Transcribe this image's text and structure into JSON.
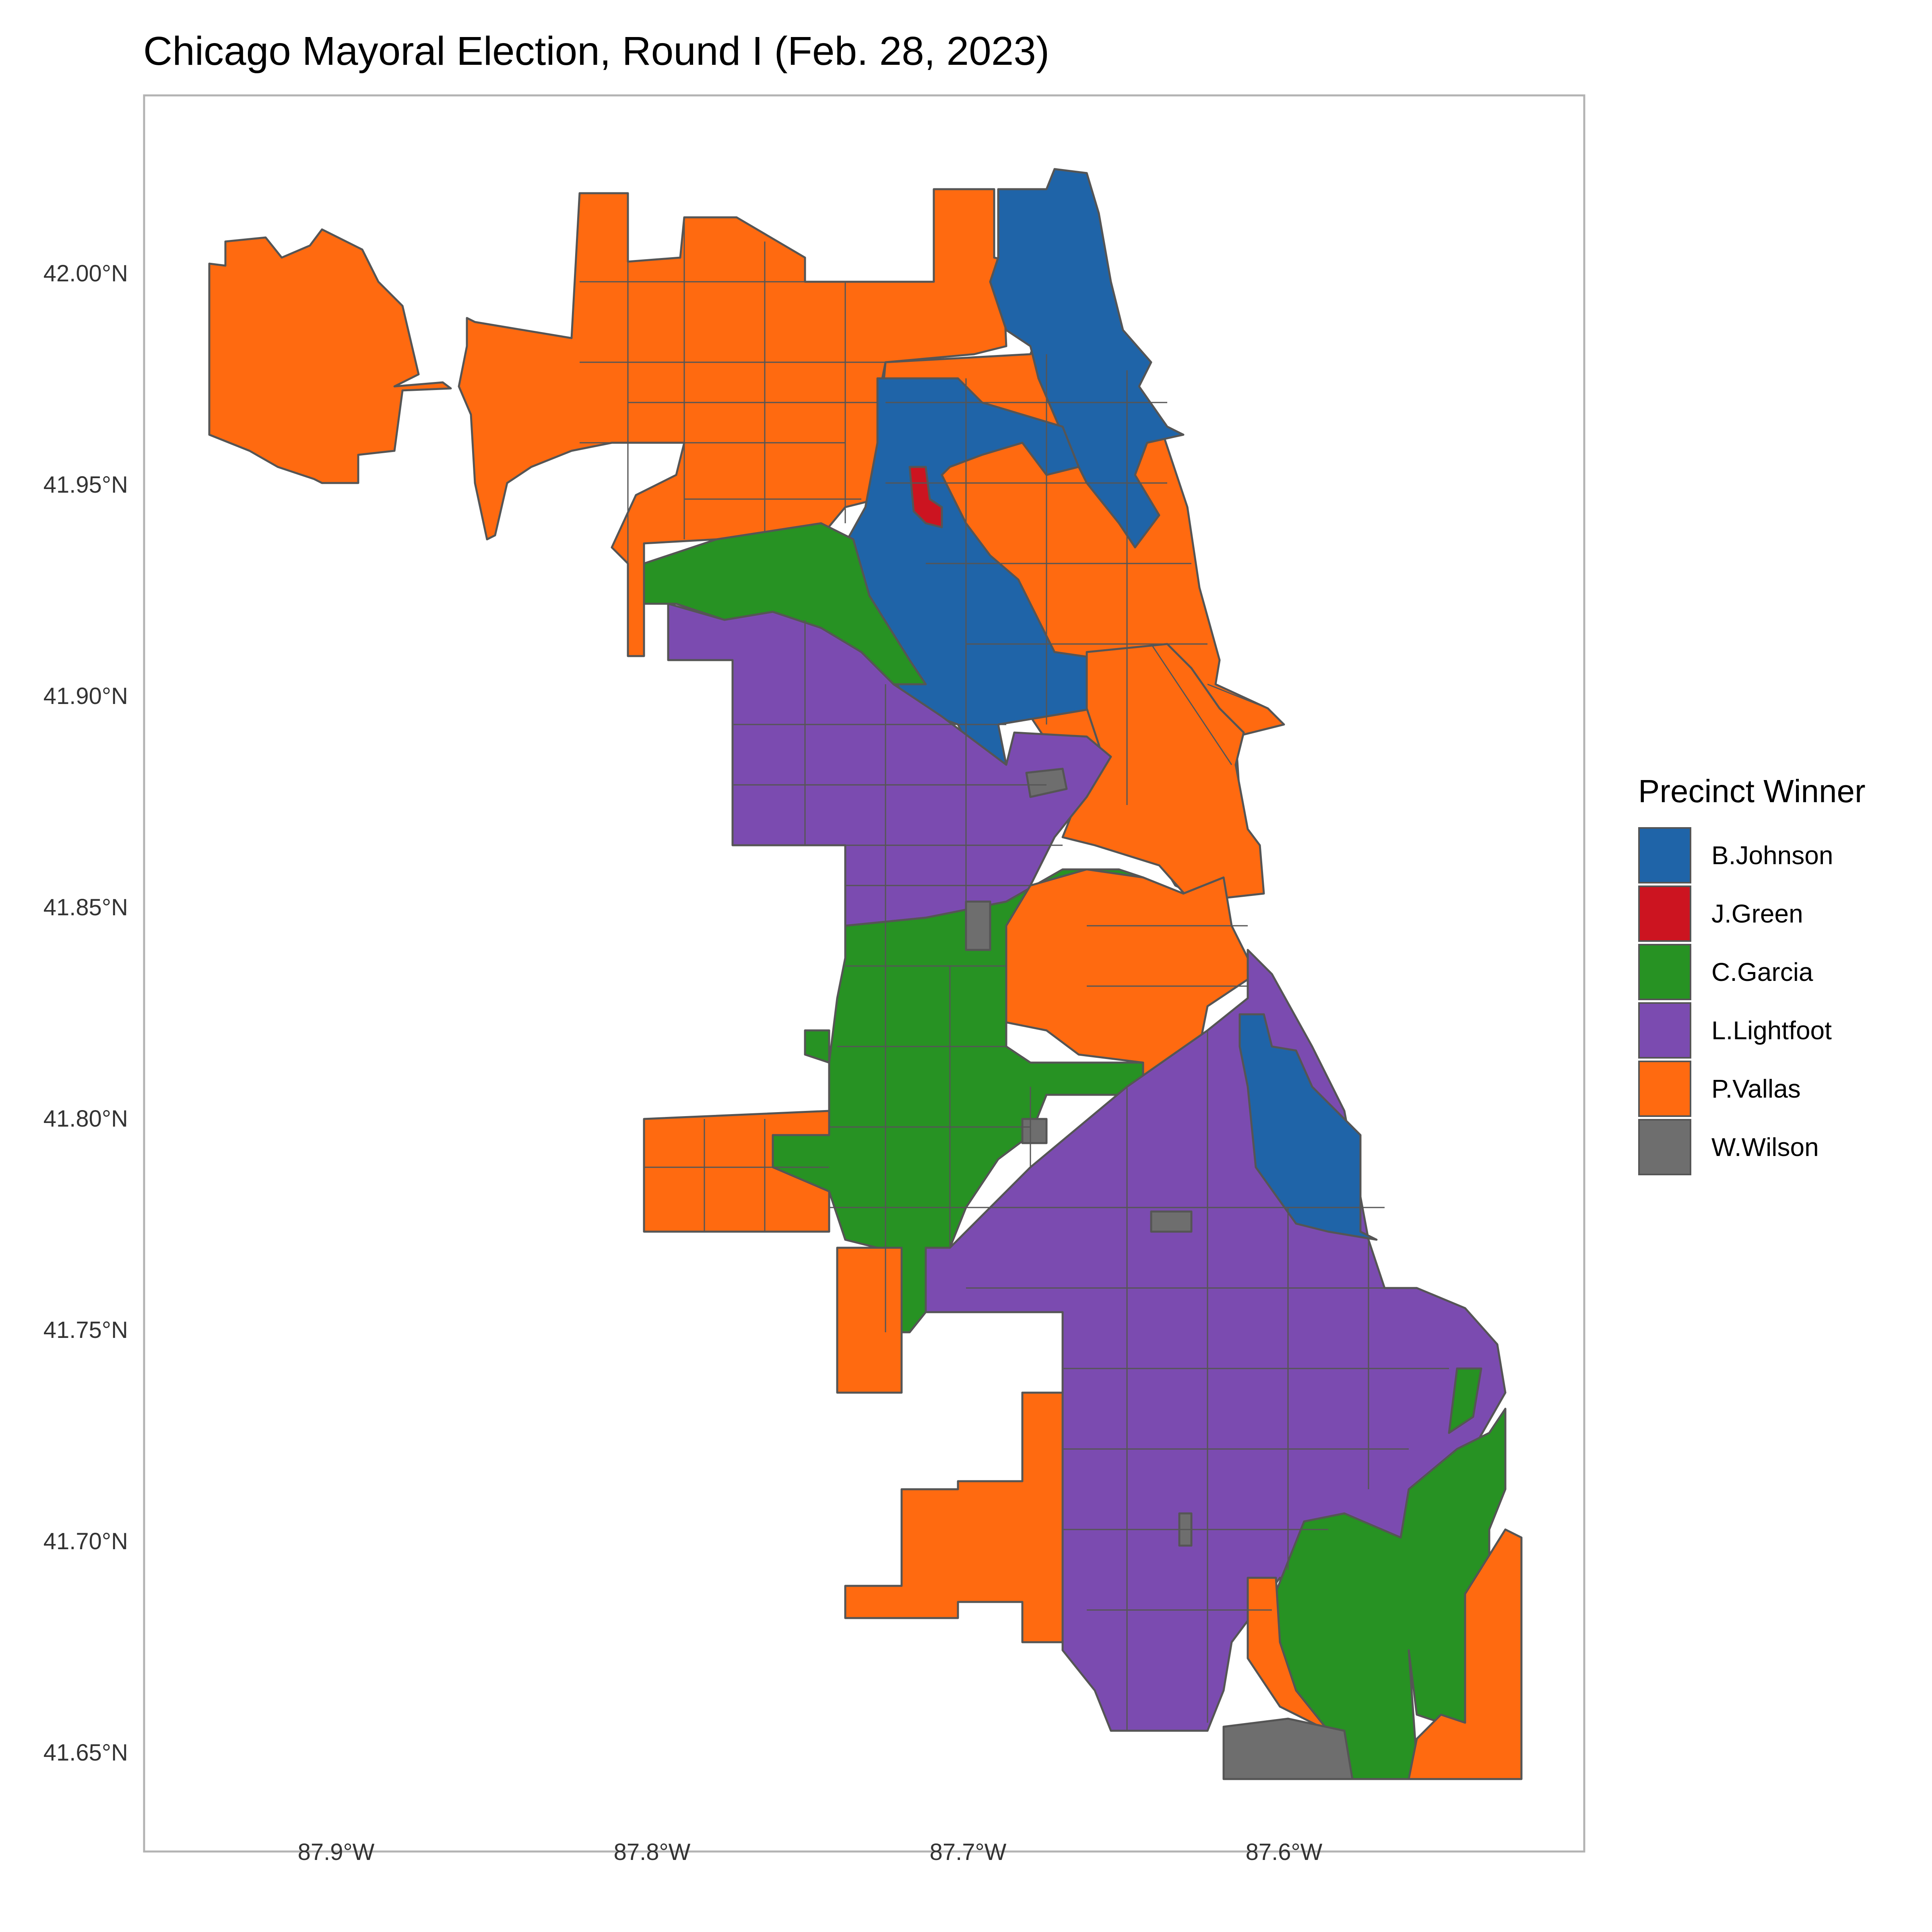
{
  "title": "Chicago Mayoral Election, Round I (Feb. 28, 2023)",
  "axes": {
    "x_ticks": [
      "87.9°W",
      "87.8°W",
      "87.7°W",
      "87.6°W"
    ],
    "y_ticks": [
      "42.00°N",
      "41.95°N",
      "41.90°N",
      "41.85°N",
      "41.80°N",
      "41.75°N",
      "41.70°N",
      "41.65°N"
    ]
  },
  "legend": {
    "title": "Precinct Winner",
    "items": [
      {
        "label": "B.Johnson",
        "color": "#1f64a8"
      },
      {
        "label": "J.Green",
        "color": "#cc1420"
      },
      {
        "label": "C.Garcia",
        "color": "#279223"
      },
      {
        "label": "L.Lightfoot",
        "color": "#7b4bb0"
      },
      {
        "label": "P.Vallas",
        "color": "#ff6a10"
      },
      {
        "label": "W.Wilson",
        "color": "#6e6e6e"
      }
    ]
  },
  "map": {
    "boundary_color": "#555555",
    "panel_border_color": "#b3b3b3",
    "regions": [
      {
        "name": "far-northwest",
        "winner": "P.Vallas"
      },
      {
        "name": "northwest-side",
        "winner": "P.Vallas"
      },
      {
        "name": "north-lakefront",
        "winner": "B.Johnson"
      },
      {
        "name": "central-north",
        "winner": "B.Johnson"
      },
      {
        "name": "lakeview-lakefront",
        "winner": "P.Vallas"
      },
      {
        "name": "near-north-loop",
        "winner": "P.Vallas"
      },
      {
        "name": "northwest-garcia-belt",
        "winner": "C.Garcia"
      },
      {
        "name": "west-side",
        "winner": "L.Lightfoot"
      },
      {
        "name": "southwest-garcia",
        "winner": "C.Garcia"
      },
      {
        "name": "southwest-vallas",
        "winner": "P.Vallas"
      },
      {
        "name": "near-south",
        "winner": "P.Vallas"
      },
      {
        "name": "hyde-park-lakefront",
        "winner": "B.Johnson"
      },
      {
        "name": "south-side",
        "winner": "L.Lightfoot"
      },
      {
        "name": "far-south-garcia",
        "winner": "C.Garcia"
      },
      {
        "name": "far-southwest-vallas",
        "winner": "P.Vallas"
      },
      {
        "name": "far-southeast-vallas",
        "winner": "P.Vallas"
      },
      {
        "name": "green-precinct",
        "winner": "J.Green"
      },
      {
        "name": "wilson-precincts",
        "winner": "W.Wilson"
      }
    ]
  }
}
